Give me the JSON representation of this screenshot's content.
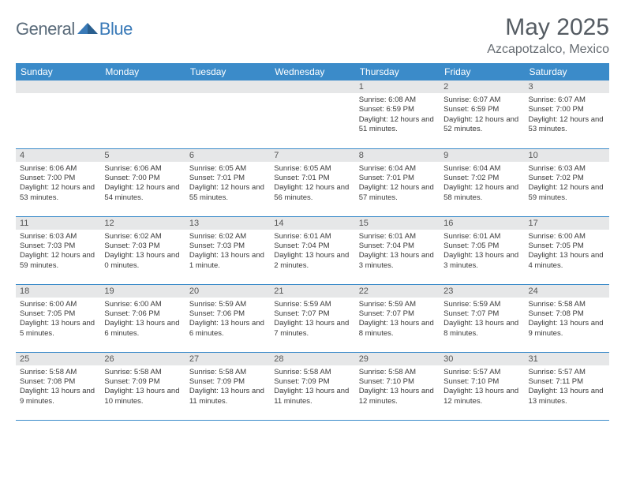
{
  "logo": {
    "general": "General",
    "blue": "Blue"
  },
  "title": "May 2025",
  "location": "Azcapotzalco, Mexico",
  "colors": {
    "header_bg": "#3b8bc9",
    "header_text": "#ffffff",
    "daynum_bg": "#e6e7e8",
    "border": "#3b8bc9",
    "logo_gray": "#5a6b7a",
    "logo_blue": "#3a7ab8",
    "title_color": "#555c63",
    "location_color": "#666c72",
    "body_text": "#3a3a3a",
    "page_bg": "#ffffff"
  },
  "weekdays": [
    "Sunday",
    "Monday",
    "Tuesday",
    "Wednesday",
    "Thursday",
    "Friday",
    "Saturday"
  ],
  "weeks": [
    [
      null,
      null,
      null,
      null,
      {
        "n": "1",
        "sunrise": "6:08 AM",
        "sunset": "6:59 PM",
        "daylight": "12 hours and 51 minutes."
      },
      {
        "n": "2",
        "sunrise": "6:07 AM",
        "sunset": "6:59 PM",
        "daylight": "12 hours and 52 minutes."
      },
      {
        "n": "3",
        "sunrise": "6:07 AM",
        "sunset": "7:00 PM",
        "daylight": "12 hours and 53 minutes."
      }
    ],
    [
      {
        "n": "4",
        "sunrise": "6:06 AM",
        "sunset": "7:00 PM",
        "daylight": "12 hours and 53 minutes."
      },
      {
        "n": "5",
        "sunrise": "6:06 AM",
        "sunset": "7:00 PM",
        "daylight": "12 hours and 54 minutes."
      },
      {
        "n": "6",
        "sunrise": "6:05 AM",
        "sunset": "7:01 PM",
        "daylight": "12 hours and 55 minutes."
      },
      {
        "n": "7",
        "sunrise": "6:05 AM",
        "sunset": "7:01 PM",
        "daylight": "12 hours and 56 minutes."
      },
      {
        "n": "8",
        "sunrise": "6:04 AM",
        "sunset": "7:01 PM",
        "daylight": "12 hours and 57 minutes."
      },
      {
        "n": "9",
        "sunrise": "6:04 AM",
        "sunset": "7:02 PM",
        "daylight": "12 hours and 58 minutes."
      },
      {
        "n": "10",
        "sunrise": "6:03 AM",
        "sunset": "7:02 PM",
        "daylight": "12 hours and 59 minutes."
      }
    ],
    [
      {
        "n": "11",
        "sunrise": "6:03 AM",
        "sunset": "7:03 PM",
        "daylight": "12 hours and 59 minutes."
      },
      {
        "n": "12",
        "sunrise": "6:02 AM",
        "sunset": "7:03 PM",
        "daylight": "13 hours and 0 minutes."
      },
      {
        "n": "13",
        "sunrise": "6:02 AM",
        "sunset": "7:03 PM",
        "daylight": "13 hours and 1 minute."
      },
      {
        "n": "14",
        "sunrise": "6:01 AM",
        "sunset": "7:04 PM",
        "daylight": "13 hours and 2 minutes."
      },
      {
        "n": "15",
        "sunrise": "6:01 AM",
        "sunset": "7:04 PM",
        "daylight": "13 hours and 3 minutes."
      },
      {
        "n": "16",
        "sunrise": "6:01 AM",
        "sunset": "7:05 PM",
        "daylight": "13 hours and 3 minutes."
      },
      {
        "n": "17",
        "sunrise": "6:00 AM",
        "sunset": "7:05 PM",
        "daylight": "13 hours and 4 minutes."
      }
    ],
    [
      {
        "n": "18",
        "sunrise": "6:00 AM",
        "sunset": "7:05 PM",
        "daylight": "13 hours and 5 minutes."
      },
      {
        "n": "19",
        "sunrise": "6:00 AM",
        "sunset": "7:06 PM",
        "daylight": "13 hours and 6 minutes."
      },
      {
        "n": "20",
        "sunrise": "5:59 AM",
        "sunset": "7:06 PM",
        "daylight": "13 hours and 6 minutes."
      },
      {
        "n": "21",
        "sunrise": "5:59 AM",
        "sunset": "7:07 PM",
        "daylight": "13 hours and 7 minutes."
      },
      {
        "n": "22",
        "sunrise": "5:59 AM",
        "sunset": "7:07 PM",
        "daylight": "13 hours and 8 minutes."
      },
      {
        "n": "23",
        "sunrise": "5:59 AM",
        "sunset": "7:07 PM",
        "daylight": "13 hours and 8 minutes."
      },
      {
        "n": "24",
        "sunrise": "5:58 AM",
        "sunset": "7:08 PM",
        "daylight": "13 hours and 9 minutes."
      }
    ],
    [
      {
        "n": "25",
        "sunrise": "5:58 AM",
        "sunset": "7:08 PM",
        "daylight": "13 hours and 9 minutes."
      },
      {
        "n": "26",
        "sunrise": "5:58 AM",
        "sunset": "7:09 PM",
        "daylight": "13 hours and 10 minutes."
      },
      {
        "n": "27",
        "sunrise": "5:58 AM",
        "sunset": "7:09 PM",
        "daylight": "13 hours and 11 minutes."
      },
      {
        "n": "28",
        "sunrise": "5:58 AM",
        "sunset": "7:09 PM",
        "daylight": "13 hours and 11 minutes."
      },
      {
        "n": "29",
        "sunrise": "5:58 AM",
        "sunset": "7:10 PM",
        "daylight": "13 hours and 12 minutes."
      },
      {
        "n": "30",
        "sunrise": "5:57 AM",
        "sunset": "7:10 PM",
        "daylight": "13 hours and 12 minutes."
      },
      {
        "n": "31",
        "sunrise": "5:57 AM",
        "sunset": "7:11 PM",
        "daylight": "13 hours and 13 minutes."
      }
    ]
  ],
  "labels": {
    "sunrise": "Sunrise: ",
    "sunset": "Sunset: ",
    "daylight": "Daylight: "
  }
}
